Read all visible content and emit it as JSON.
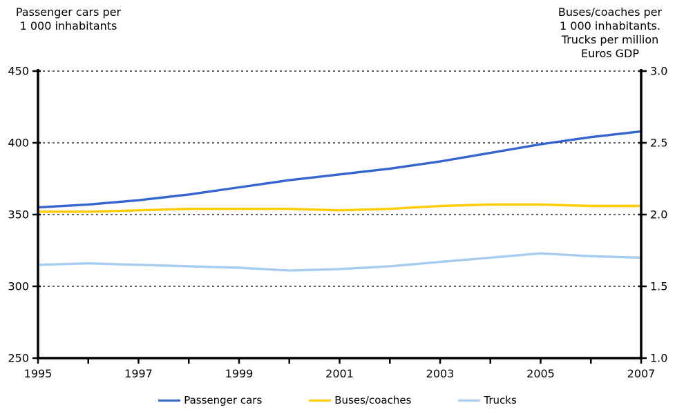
{
  "chart_data": {
    "type": "line",
    "x": [
      1995,
      1996,
      1997,
      1998,
      1999,
      2000,
      2001,
      2002,
      2003,
      2004,
      2005,
      2006,
      2007
    ],
    "x_tick_labels": [
      "1995",
      "1997",
      "1999",
      "2001",
      "2003",
      "2005",
      "2007"
    ],
    "left_axis": {
      "title": "Passenger cars per\n1 000 inhabitants",
      "tick_labels": [
        "450",
        "400",
        "350",
        "300",
        "250"
      ],
      "range": [
        250,
        450
      ]
    },
    "right_axis": {
      "title": "Buses/coaches per\n1 000 inhabitants.\nTrucks per million\nEuros GDP",
      "tick_labels": [
        "3.0",
        "2.5",
        "2.0",
        "1.5",
        "1.0"
      ],
      "range": [
        1.0,
        3.0
      ]
    },
    "grid": {
      "horizontal": "dashed",
      "vertical": "none"
    },
    "legend_position": "bottom",
    "series": [
      {
        "name": "Passenger cars",
        "axis": "left",
        "color": "#3565cf",
        "values": [
          355,
          357,
          360,
          364,
          369,
          374,
          378,
          382,
          387,
          393,
          399,
          404,
          408
        ]
      },
      {
        "name": "Buses/coaches",
        "axis": "right",
        "color": "#ffcc00",
        "values": [
          2.02,
          2.02,
          2.03,
          2.04,
          2.04,
          2.04,
          2.03,
          2.04,
          2.06,
          2.07,
          2.07,
          2.06,
          2.06
        ]
      },
      {
        "name": "Trucks",
        "axis": "right",
        "color": "#a6cdf0",
        "values": [
          1.65,
          1.66,
          1.65,
          1.64,
          1.63,
          1.61,
          1.62,
          1.64,
          1.67,
          1.7,
          1.73,
          1.71,
          1.7
        ]
      }
    ],
    "colors": {
      "axis": "#000000",
      "background": "#ffffff"
    }
  }
}
